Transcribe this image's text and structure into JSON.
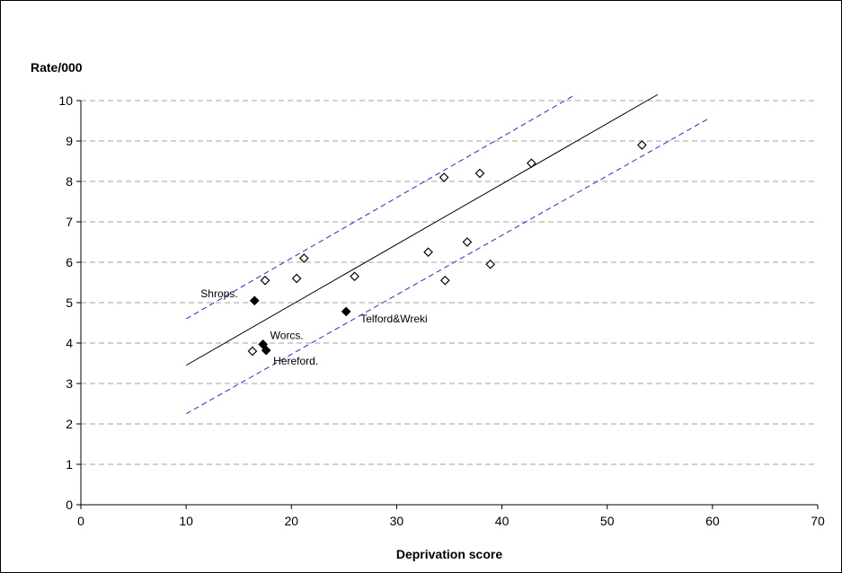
{
  "chart_data": {
    "type": "scatter",
    "title": "",
    "ylabel": "Rate/000",
    "xlabel": "Deprivation score",
    "xlim": [
      0,
      70
    ],
    "ylim": [
      0,
      10
    ],
    "xticks": [
      0,
      10,
      20,
      30,
      40,
      50,
      60,
      70
    ],
    "yticks": [
      0,
      1,
      2,
      3,
      4,
      5,
      6,
      7,
      8,
      9,
      10
    ],
    "grid": "horizontal dashed",
    "series": [
      {
        "marker": "open-diamond",
        "color": "#000000",
        "points": [
          {
            "x": 16.3,
            "y": 3.8
          },
          {
            "x": 17.5,
            "y": 5.55
          },
          {
            "x": 20.5,
            "y": 5.6
          },
          {
            "x": 21.2,
            "y": 6.1
          },
          {
            "x": 26.0,
            "y": 5.65
          },
          {
            "x": 33.0,
            "y": 6.25
          },
          {
            "x": 34.5,
            "y": 8.1
          },
          {
            "x": 34.6,
            "y": 5.55
          },
          {
            "x": 36.7,
            "y": 6.5
          },
          {
            "x": 37.9,
            "y": 8.2
          },
          {
            "x": 38.9,
            "y": 5.95
          },
          {
            "x": 42.8,
            "y": 8.45
          },
          {
            "x": 53.3,
            "y": 8.9
          }
        ]
      },
      {
        "marker": "filled-diamond",
        "color": "#000000",
        "points": [
          {
            "x": 16.5,
            "y": 5.05,
            "label": "Shrops."
          },
          {
            "x": 17.3,
            "y": 3.97,
            "label": "Worcs."
          },
          {
            "x": 17.6,
            "y": 3.82,
            "label": "Hereford."
          },
          {
            "x": 25.2,
            "y": 4.78,
            "label": "Telford&Wreki"
          }
        ]
      }
    ],
    "lines": [
      {
        "style": "solid",
        "color": "#000000",
        "from": {
          "x": 10,
          "y": 3.45
        },
        "to": {
          "x": 54.8,
          "y": 10.15
        }
      },
      {
        "style": "dashed",
        "color": "#2b2bcc",
        "from": {
          "x": 10,
          "y": 4.6
        },
        "to": {
          "x": 47.0,
          "y": 10.15
        }
      },
      {
        "style": "dashed",
        "color": "#2b2bcc",
        "from": {
          "x": 10,
          "y": 2.25
        },
        "to": {
          "x": 59.8,
          "y": 9.58
        }
      }
    ]
  }
}
